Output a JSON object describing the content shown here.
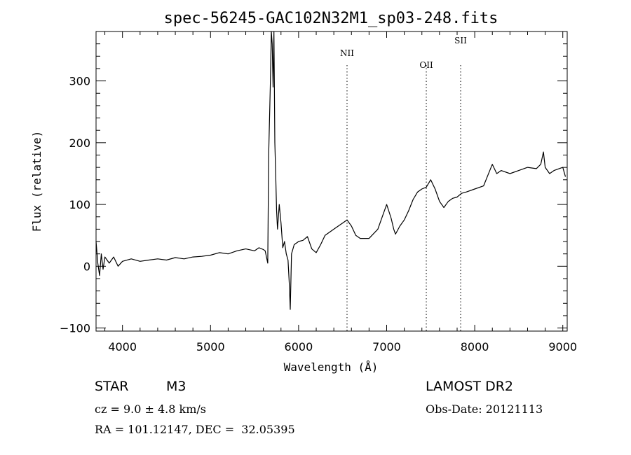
{
  "chart_data": {
    "type": "line",
    "title": "spec-56245-GAC102N32M1_sp03-248.fits",
    "xlabel": "Wavelength (Å)",
    "ylabel": "Flux (relative)",
    "xlim": [
      3700,
      9050
    ],
    "ylim": [
      -105,
      380
    ],
    "xticks": [
      4000,
      5000,
      6000,
      7000,
      8000,
      9000
    ],
    "yticks": [
      -100,
      0,
      100,
      200,
      300
    ],
    "grid": false,
    "lines": [
      {
        "label": "NII",
        "x": 6550
      },
      {
        "label": "OII",
        "x": 7450
      },
      {
        "label": "SII",
        "x": 7840
      }
    ],
    "series": [
      {
        "x": [
          3700,
          3720,
          3740,
          3760,
          3780,
          3800,
          3850,
          3900,
          3950,
          4000,
          4100,
          4200,
          4300,
          4400,
          4500,
          4600,
          4700,
          4800,
          4900,
          5000,
          5100,
          5200,
          5300,
          5400,
          5500,
          5550,
          5600,
          5620,
          5650,
          5660,
          5680,
          5690,
          5700,
          5710,
          5720,
          5730,
          5740,
          5750,
          5760,
          5780,
          5800,
          5820,
          5840,
          5860,
          5880,
          5895,
          5905,
          5920,
          5950,
          6000,
          6050,
          6100,
          6150,
          6200,
          6250,
          6300,
          6400,
          6500,
          6550,
          6600,
          6650,
          6700,
          6800,
          6900,
          7000,
          7050,
          7080,
          7100,
          7150,
          7200,
          7250,
          7300,
          7350,
          7400,
          7450,
          7500,
          7550,
          7600,
          7650,
          7700,
          7750,
          7800,
          7850,
          7900,
          8000,
          8100,
          8200,
          8250,
          8300,
          8400,
          8500,
          8600,
          8700,
          8750,
          8780,
          8800,
          8850,
          8900,
          9000,
          9030
        ],
        "values": [
          40,
          5,
          -15,
          20,
          -5,
          15,
          5,
          15,
          0,
          8,
          12,
          8,
          10,
          12,
          10,
          14,
          12,
          15,
          16,
          18,
          22,
          20,
          25,
          28,
          25,
          30,
          27,
          25,
          5,
          180,
          300,
          380,
          360,
          290,
          380,
          200,
          150,
          90,
          60,
          100,
          70,
          30,
          40,
          20,
          10,
          -30,
          -70,
          20,
          35,
          40,
          42,
          48,
          28,
          22,
          35,
          50,
          60,
          70,
          75,
          65,
          50,
          45,
          45,
          60,
          100,
          78,
          60,
          52,
          65,
          75,
          90,
          108,
          120,
          125,
          128,
          140,
          125,
          105,
          95,
          105,
          110,
          112,
          118,
          120,
          125,
          130,
          165,
          150,
          155,
          150,
          155,
          160,
          158,
          165,
          185,
          160,
          150,
          155,
          160,
          145
        ]
      }
    ]
  },
  "info": {
    "object_type": "STAR",
    "subclass": "M3",
    "survey": "LAMOST DR2",
    "cz": "cz = 9.0 ± 4.8 km/s",
    "obs_date": "Obs-Date: 20121113",
    "coords": "RA = 101.12147, DEC =  32.05395"
  }
}
